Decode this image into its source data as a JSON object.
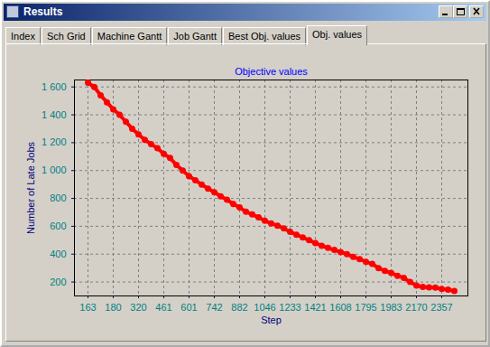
{
  "window": {
    "title": "Results",
    "tabs": [
      "Index",
      "Sch Grid",
      "Machine Gantt",
      "Job Gantt",
      "Best Obj. values",
      "Obj. values"
    ],
    "active_tab": "Obj. values"
  },
  "chart_data": {
    "type": "line",
    "title": "Objective values",
    "x_label": "Step",
    "y_label": "Number of Late Jobs",
    "categories": [
      "163",
      null,
      null,
      null,
      "180",
      null,
      null,
      null,
      "320",
      null,
      null,
      null,
      "461",
      null,
      null,
      null,
      "601",
      null,
      null,
      null,
      "742",
      null,
      null,
      null,
      "882",
      null,
      null,
      null,
      "1046",
      null,
      null,
      null,
      "1233",
      null,
      null,
      null,
      "1421",
      null,
      null,
      null,
      "1608",
      null,
      null,
      null,
      "1795",
      null,
      null,
      null,
      "1983",
      null,
      null,
      null,
      "2170",
      null,
      null,
      null,
      "2357",
      null,
      null
    ],
    "values": [
      1630,
      1600,
      1540,
      1490,
      1440,
      1400,
      1350,
      1300,
      1260,
      1220,
      1190,
      1160,
      1120,
      1090,
      1040,
      1000,
      960,
      930,
      900,
      870,
      845,
      815,
      790,
      760,
      735,
      705,
      685,
      665,
      640,
      620,
      605,
      585,
      560,
      540,
      520,
      500,
      480,
      460,
      445,
      430,
      415,
      400,
      380,
      365,
      345,
      330,
      300,
      280,
      265,
      245,
      230,
      200,
      175,
      165,
      162,
      160,
      150,
      145,
      135
    ],
    "color": "#ff0000",
    "marker": "circle",
    "ylim": [
      100,
      1650
    ],
    "yticks": [
      200,
      400,
      600,
      800,
      {
        "value": 1000,
        "label": "1 000"
      },
      {
        "value": 1200,
        "label": "1 200"
      },
      {
        "value": 1400,
        "label": "1 400"
      },
      {
        "value": 1600,
        "label": "1 600"
      }
    ],
    "grid": true
  }
}
